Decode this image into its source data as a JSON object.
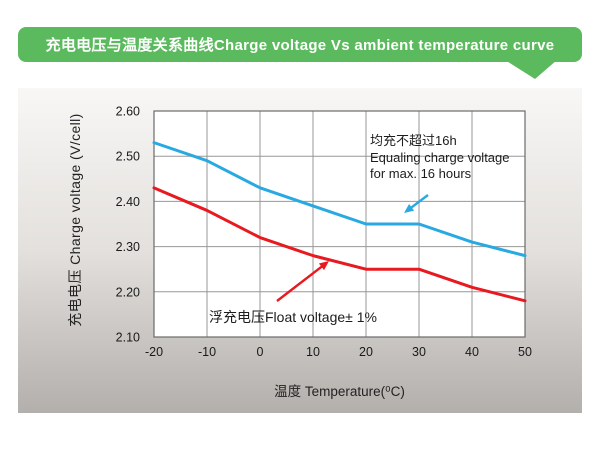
{
  "header": {
    "title": "充电电压与温度关系曲线Charge voltage Vs ambient temperature curve",
    "background": "#5cba5e",
    "text_color": "#ffffff"
  },
  "chart_data": {
    "type": "line",
    "xlabel": "温度 Temperature(⁰C)",
    "ylabel": "充电电压 Charge voltage (V/cell)",
    "xlim": [
      -20,
      50
    ],
    "ylim": [
      2.1,
      2.6
    ],
    "x_ticks": [
      -20,
      -10,
      0,
      10,
      20,
      30,
      40,
      50
    ],
    "y_ticks": [
      2.1,
      2.2,
      2.3,
      2.4,
      2.5,
      2.6
    ],
    "grid": true,
    "legend_position": "none",
    "x": [
      -20,
      -10,
      0,
      10,
      20,
      30,
      40,
      50
    ],
    "series": [
      {
        "name": "均充 Equalizing charge voltage",
        "color": "#29a9e1",
        "values": [
          2.53,
          2.49,
          2.43,
          2.39,
          2.35,
          2.35,
          2.31,
          2.28
        ]
      },
      {
        "name": "浮充 Float voltage",
        "color": "#e8191f",
        "values": [
          2.43,
          2.38,
          2.32,
          2.28,
          2.25,
          2.25,
          2.21,
          2.18
        ]
      }
    ],
    "annotations": [
      {
        "lines": [
          "均充不超过16h",
          "Equaling charge voltage",
          "for max. 16 hours"
        ],
        "arrow_color": "#29a9e1"
      },
      {
        "lines": [
          "浮充电压Float voltage± 1%"
        ],
        "arrow_color": "#e8191f"
      }
    ],
    "colors": {
      "grid": "#979797",
      "border": "#6b6b6b",
      "tick_text": "#1a1a1a",
      "plot_bg": "#ffffff"
    }
  }
}
